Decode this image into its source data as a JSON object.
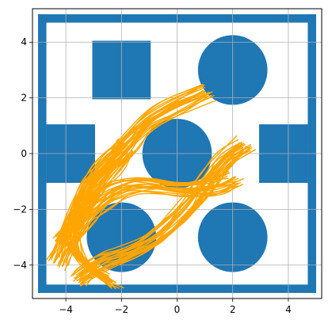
{
  "chart_data": {
    "type": "scatter",
    "title": "",
    "xlabel": "",
    "ylabel": "",
    "xlim": [
      -5.2,
      5.2
    ],
    "ylim": [
      -5.2,
      5.2
    ],
    "grid": true,
    "x_ticks": [
      {
        "value": -4,
        "label": "−4"
      },
      {
        "value": -2,
        "label": "−2"
      },
      {
        "value": 0,
        "label": "0"
      },
      {
        "value": 2,
        "label": "2"
      },
      {
        "value": 4,
        "label": "4"
      }
    ],
    "y_ticks": [
      {
        "value": -4,
        "label": "−4"
      },
      {
        "value": -2,
        "label": "−2"
      },
      {
        "value": 0,
        "label": "0"
      },
      {
        "value": 2,
        "label": "2"
      },
      {
        "value": 4,
        "label": "4"
      }
    ],
    "obstacle_color": "#1f77b4",
    "trajectory_color": "#ffa500",
    "walls": [
      {
        "x0": -5,
        "y0": 4.7,
        "x1": 5,
        "y1": 5
      },
      {
        "x0": -5,
        "y0": -5,
        "x1": 5,
        "y1": -4.7
      },
      {
        "x0": -5,
        "y0": -5,
        "x1": -4.7,
        "y1": 5
      },
      {
        "x0": 4.7,
        "y0": -5,
        "x1": 5,
        "y1": 5
      }
    ],
    "boxes": [
      {
        "x0": -3.05,
        "y0": 1.95,
        "x1": -0.95,
        "y1": 4.05
      },
      {
        "x0": -4.7,
        "y0": -1.05,
        "x1": -2.95,
        "y1": 1.05
      },
      {
        "x0": 2.95,
        "y0": -1.05,
        "x1": 4.7,
        "y1": 1.05
      }
    ],
    "circles": [
      {
        "cx": 2,
        "cy": 3,
        "r": 1.25
      },
      {
        "cx": 0,
        "cy": 0,
        "r": 1.25
      },
      {
        "cx": -2,
        "cy": -3,
        "r": 1.25
      },
      {
        "cx": 2,
        "cy": -3,
        "r": 1.25
      }
    ],
    "trajectory_bundles": [
      {
        "name": "",
        "points": [
          [
            -4.3,
            -3.9
          ],
          [
            -3.8,
            -2.7
          ],
          [
            -3.3,
            -1.3
          ],
          [
            -2.6,
            -0.4
          ],
          [
            -1.8,
            0.3
          ],
          [
            -1.2,
            1.1
          ],
          [
            -0.2,
            1.7
          ],
          [
            1.0,
            2.2
          ]
        ]
      },
      {
        "name": "",
        "points": [
          [
            -3.6,
            -4.5
          ],
          [
            -2.8,
            -3.9
          ],
          [
            -1.8,
            -3.6
          ],
          [
            -0.8,
            -3.1
          ],
          [
            0.3,
            -2.1
          ],
          [
            1.1,
            -1.0
          ],
          [
            1.7,
            -0.2
          ],
          [
            2.4,
            0.3
          ]
        ]
      },
      {
        "name": "",
        "points": [
          [
            -4.1,
            -3.2
          ],
          [
            -3.4,
            -2.4
          ],
          [
            -2.8,
            -1.7
          ],
          [
            -2.0,
            -1.2
          ],
          [
            -1.0,
            -1.1
          ],
          [
            0.2,
            -1.3
          ],
          [
            1.3,
            -1.2
          ],
          [
            2.0,
            -0.9
          ]
        ]
      },
      {
        "name": "",
        "points": [
          [
            -2.4,
            -4.6
          ],
          [
            -3.3,
            -4.1
          ],
          [
            -3.9,
            -3.1
          ],
          [
            -3.6,
            -2.2
          ],
          [
            -3.0,
            -1.2
          ],
          [
            -2.4,
            -0.5
          ],
          [
            -1.8,
            0.2
          ]
        ]
      }
    ]
  }
}
